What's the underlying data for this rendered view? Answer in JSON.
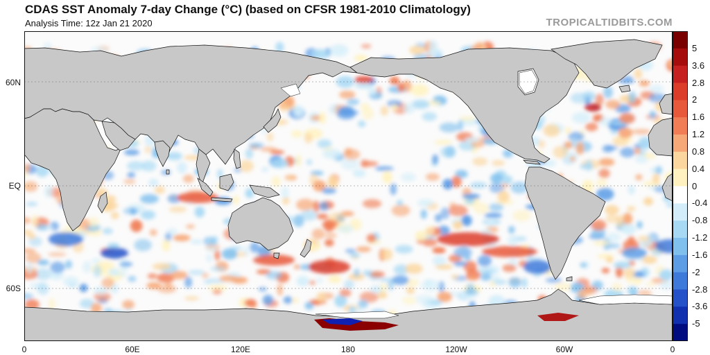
{
  "header": {
    "title": "CDAS SST Anomaly 7-day Change (°C) (based on CFSR 1981-2010 Climatology)",
    "analysis_time": "Analysis Time: 12z Jan 21 2020",
    "credit": "TROPICALTIDBITS.COM"
  },
  "axes": {
    "lat_ticks": [
      "60N",
      "EQ",
      "60S"
    ],
    "lon_ticks": [
      "0",
      "60E",
      "120E",
      "180",
      "120W",
      "60W",
      "0"
    ]
  },
  "colorbar": {
    "labels": [
      "5",
      "3.6",
      "2.8",
      "2",
      "1.6",
      "1.2",
      "0.8",
      "0.4",
      "0",
      "-0.4",
      "-0.8",
      "-1.2",
      "-1.6",
      "-2",
      "-2.8",
      "-3.6",
      "-5"
    ],
    "colors": [
      "#7a0000",
      "#a60c0c",
      "#c62020",
      "#dc3c2a",
      "#e8583a",
      "#f07d55",
      "#f6a878",
      "#fbd69e",
      "#fff2c0",
      "#ffffff",
      "#d3eefa",
      "#a8d9f4",
      "#80c0ee",
      "#5d9de6",
      "#3e7ada",
      "#2552c8",
      "#1030b0",
      "#000c80"
    ]
  },
  "map": {
    "colors": {
      "land": "#c8c8c8",
      "ocean": "#fbfbfb",
      "ice": "#ffffff",
      "border": "#111111"
    }
  }
}
